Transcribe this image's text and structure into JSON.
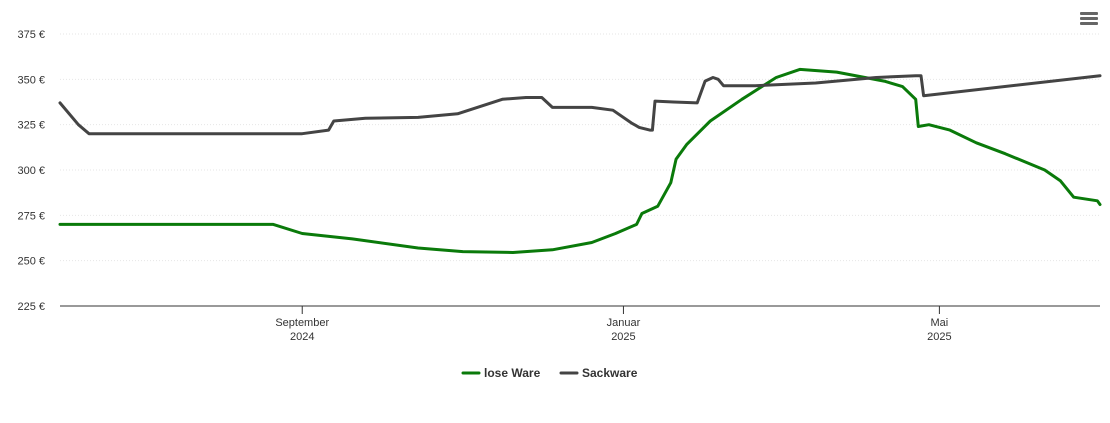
{
  "menu": {
    "icon": "hamburger-menu-icon"
  },
  "chart_data": {
    "type": "line",
    "title": "",
    "xlabel": "",
    "ylabel": "",
    "y_unit": "€",
    "ylim": [
      225,
      375
    ],
    "y_ticks": [
      {
        "value": 225,
        "label": "225 €"
      },
      {
        "value": 250,
        "label": "250 €"
      },
      {
        "value": 275,
        "label": "275 €"
      },
      {
        "value": 300,
        "label": "300 €"
      },
      {
        "value": 325,
        "label": "325 €"
      },
      {
        "value": 350,
        "label": "350 €"
      },
      {
        "value": 375,
        "label": "375 €"
      }
    ],
    "xlim": [
      "2024-06-01",
      "2025-07-01"
    ],
    "x_ticks": [
      {
        "date": "2024-09-01",
        "line1": "September",
        "line2": "2024"
      },
      {
        "date": "2025-01-01",
        "line1": "Januar",
        "line2": "2025"
      },
      {
        "date": "2025-05-01",
        "line1": "Mai",
        "line2": "2025"
      }
    ],
    "grid": true,
    "legend_position": "bottom-center",
    "series": [
      {
        "name": "lose Ware",
        "color": "#0a7a0a",
        "points": [
          [
            "2024-06-01",
            270
          ],
          [
            "2024-07-15",
            270
          ],
          [
            "2024-08-21",
            270
          ],
          [
            "2024-09-01",
            265
          ],
          [
            "2024-09-20",
            262
          ],
          [
            "2024-10-15",
            257
          ],
          [
            "2024-11-01",
            255
          ],
          [
            "2024-11-20",
            254.5
          ],
          [
            "2024-12-05",
            256
          ],
          [
            "2024-12-20",
            260
          ],
          [
            "2024-12-29",
            265
          ],
          [
            "2025-01-06",
            270
          ],
          [
            "2025-01-08",
            276
          ],
          [
            "2025-01-14",
            280
          ],
          [
            "2025-01-19",
            293
          ],
          [
            "2025-01-21",
            306
          ],
          [
            "2025-01-25",
            314
          ],
          [
            "2025-02-03",
            327
          ],
          [
            "2025-02-15",
            339
          ],
          [
            "2025-02-28",
            351
          ],
          [
            "2025-03-09",
            355.5
          ],
          [
            "2025-03-23",
            354
          ],
          [
            "2025-04-10",
            349
          ],
          [
            "2025-04-17",
            346
          ],
          [
            "2025-04-22",
            339
          ],
          [
            "2025-04-23",
            324
          ],
          [
            "2025-04-27",
            325
          ],
          [
            "2025-05-05",
            322
          ],
          [
            "2025-05-15",
            315
          ],
          [
            "2025-05-26",
            309
          ],
          [
            "2025-06-10",
            300
          ],
          [
            "2025-06-16",
            294
          ],
          [
            "2025-06-21",
            285
          ],
          [
            "2025-06-30",
            283
          ],
          [
            "2025-07-01",
            281
          ]
        ]
      },
      {
        "name": "Sackware",
        "color": "#444444",
        "points": [
          [
            "2024-06-01",
            337
          ],
          [
            "2024-06-08",
            325
          ],
          [
            "2024-06-12",
            320
          ],
          [
            "2024-07-15",
            320
          ],
          [
            "2024-08-15",
            320
          ],
          [
            "2024-09-01",
            320
          ],
          [
            "2024-09-11",
            322
          ],
          [
            "2024-09-13",
            327
          ],
          [
            "2024-09-25",
            328.5
          ],
          [
            "2024-10-15",
            329
          ],
          [
            "2024-10-30",
            331
          ],
          [
            "2024-11-16",
            339
          ],
          [
            "2024-11-25",
            340
          ],
          [
            "2024-12-01",
            340
          ],
          [
            "2024-12-05",
            334.5
          ],
          [
            "2024-12-20",
            334.5
          ],
          [
            "2024-12-28",
            333
          ],
          [
            "2025-01-04",
            326
          ],
          [
            "2025-01-07",
            323.5
          ],
          [
            "2025-01-11",
            322
          ],
          [
            "2025-01-12",
            322
          ],
          [
            "2025-01-13",
            338
          ],
          [
            "2025-01-20",
            337.5
          ],
          [
            "2025-01-29",
            337
          ],
          [
            "2025-02-01",
            349
          ],
          [
            "2025-02-04",
            351
          ],
          [
            "2025-02-06",
            350
          ],
          [
            "2025-02-08",
            346.5
          ],
          [
            "2025-02-20",
            346.5
          ],
          [
            "2025-03-15",
            348
          ],
          [
            "2025-04-07",
            351
          ],
          [
            "2025-04-22",
            352
          ],
          [
            "2025-04-24",
            352
          ],
          [
            "2025-04-25",
            341
          ],
          [
            "2025-07-01",
            352
          ]
        ]
      }
    ]
  }
}
